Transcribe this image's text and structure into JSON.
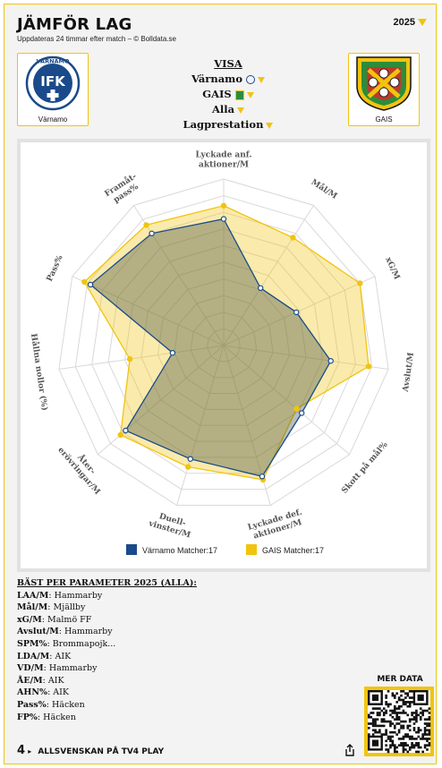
{
  "header": {
    "title": "JÄMFÖR LAG",
    "subtitle": "Uppdateras 24 timmar efter match – © Bolldata.se",
    "year": "2025"
  },
  "team_left": {
    "name": "Värnamo",
    "logo_text": "IFK",
    "logo_ring_text": "VÄRNAMO",
    "color": "#1a4a8a"
  },
  "team_right": {
    "name": "GAIS",
    "logo_text": "G A I S",
    "color": "#f1c40f"
  },
  "visa": {
    "heading": "VISA",
    "team1": "Värnamo",
    "team2": "GAIS",
    "filter": "Alla",
    "mode": "Lagprestation"
  },
  "chart_data": {
    "type": "radar",
    "axes": [
      "Lyckade anf. aktioner/M",
      "Mål/M",
      "xG/M",
      "Avslut/M",
      "Skott på mål%",
      "Lyckade def. aktioner/M",
      "Duell-vinster/M",
      "Åter-erövringar/M",
      "Hållna nollor (%)",
      "Pass%",
      "Framåt-pass%"
    ],
    "range": [
      0,
      1
    ],
    "series": [
      {
        "name": "Värnamo Matcher:17",
        "color": "#1a4a8a",
        "values": [
          0.76,
          0.41,
          0.48,
          0.65,
          0.62,
          0.82,
          0.71,
          0.78,
          0.31,
          0.88,
          0.8
        ]
      },
      {
        "name": "GAIS Matcher:17",
        "color": "#f1c40f",
        "values": [
          0.84,
          0.77,
          0.9,
          0.88,
          0.58,
          0.84,
          0.76,
          0.82,
          0.57,
          0.92,
          0.86
        ]
      }
    ],
    "legend_position": "bottom"
  },
  "best": {
    "heading": "BÄST PER PARAMETER 2025 (ALLA):",
    "rows": [
      {
        "key": "LAA/M",
        "team": "Hammarby"
      },
      {
        "key": "Mål/M",
        "team": "Mjällby"
      },
      {
        "key": "xG/M",
        "team": "Malmö FF"
      },
      {
        "key": "Avslut/M",
        "team": "Hammarby"
      },
      {
        "key": "SPM%",
        "team": "Brommapojk..."
      },
      {
        "key": "LDA/M",
        "team": "AIK"
      },
      {
        "key": "VD/M",
        "team": "Hammarby"
      },
      {
        "key": "ÅE/M",
        "team": "AIK"
      },
      {
        "key": "AHN%",
        "team": "AIK"
      },
      {
        "key": "Pass%",
        "team": "Häcken"
      },
      {
        "key": "FP%",
        "team": "Häcken"
      }
    ]
  },
  "more_data": "MER DATA",
  "footer": {
    "logo": "4",
    "text": "ALLSVENSKAN PÅ TV4 PLAY"
  }
}
